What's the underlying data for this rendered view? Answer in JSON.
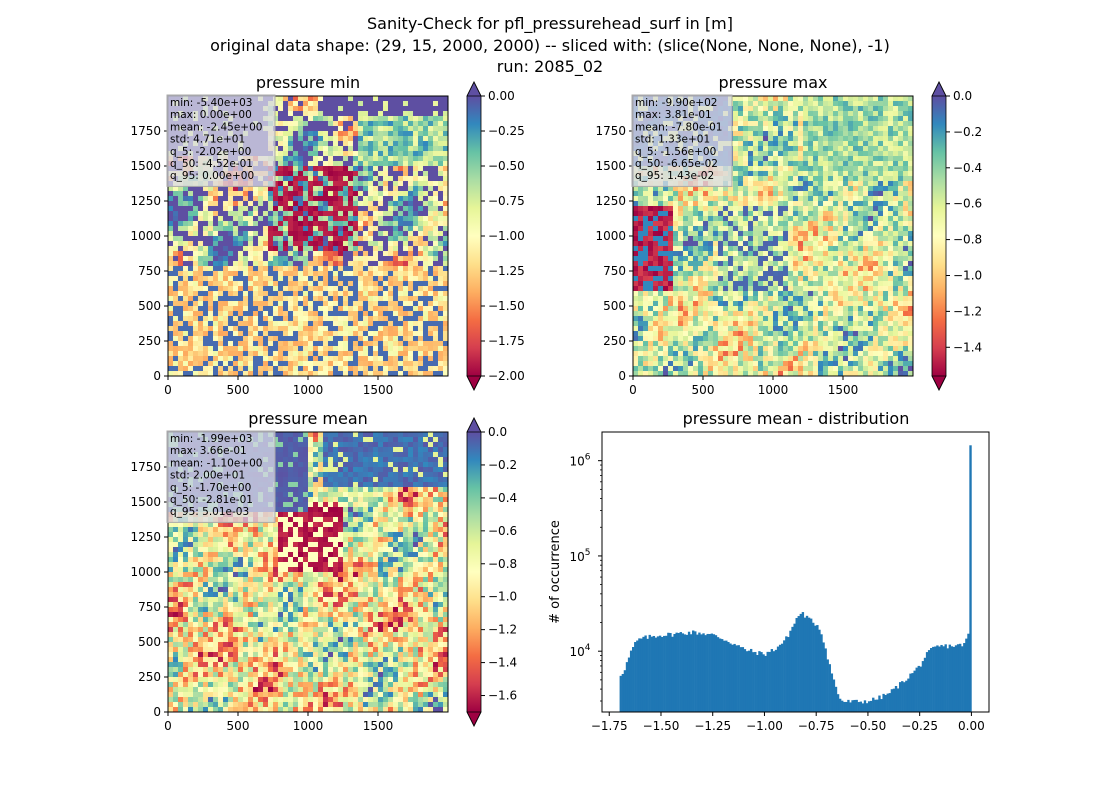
{
  "figure": {
    "title_lines": [
      "Sanity-Check for pfl_pressurehead_surf in [m]",
      "original data shape: (29, 15, 2000, 2000) -- sliced with: (slice(None, None, None), -1)",
      "run: 2085_02"
    ]
  },
  "colors": {
    "spectral": [
      "#9e0142",
      "#d53e4f",
      "#f46d43",
      "#fdae61",
      "#fee08b",
      "#ffffbf",
      "#e6f598",
      "#abdda4",
      "#66c2a5",
      "#3288bd",
      "#5e4fa2"
    ],
    "hist_bar": "#1f77b4",
    "stats_box_bg": "#d9d9e6"
  },
  "chart_data": [
    {
      "type": "heatmap",
      "title": "pressure min",
      "xlim": [
        0,
        2000
      ],
      "ylim": [
        0,
        2000
      ],
      "xticks": [
        "0",
        "500",
        "1000",
        "1500"
      ],
      "yticks": [
        "0",
        "250",
        "500",
        "750",
        "1000",
        "1250",
        "1500",
        "1750"
      ],
      "colorbar": {
        "range": [
          -2.0,
          0.0
        ],
        "ticks": [
          "0.00",
          "−0.25",
          "−0.50",
          "−0.75",
          "−1.00",
          "−1.25",
          "−1.50",
          "−1.75",
          "−2.00"
        ],
        "extend": "both"
      },
      "stats": [
        "min: -5.40e+03",
        "max: 0.00e+00",
        "mean: -2.45e+00",
        "std: 4.71e+01",
        "q_5: -2.02e+00",
        "q_50: -4.52e-01",
        "q_95: 0.00e+00"
      ]
    },
    {
      "type": "heatmap",
      "title": "pressure max",
      "xlim": [
        0,
        2000
      ],
      "ylim": [
        0,
        2000
      ],
      "xticks": [
        "0",
        "500",
        "1000",
        "1500"
      ],
      "yticks": [
        "0",
        "250",
        "500",
        "750",
        "1000",
        "1250",
        "1500",
        "1750"
      ],
      "colorbar": {
        "range": [
          -1.56,
          0.0
        ],
        "ticks": [
          "0.0",
          "−0.2",
          "−0.4",
          "−0.6",
          "−0.8",
          "−1.0",
          "−1.2",
          "−1.4"
        ],
        "extend": "both"
      },
      "stats": [
        "min: -9.90e+02",
        "max: 3.81e-01",
        "mean: -7.80e-01",
        "std: 1.33e+01",
        "q_5: -1.56e+00",
        "q_50: -6.65e-02",
        "q_95: 1.43e-02"
      ]
    },
    {
      "type": "heatmap",
      "title": "pressure mean",
      "xlim": [
        0,
        2000
      ],
      "ylim": [
        0,
        2000
      ],
      "xticks": [
        "0",
        "500",
        "1000",
        "1500"
      ],
      "yticks": [
        "0",
        "250",
        "500",
        "750",
        "1000",
        "1250",
        "1500",
        "1750"
      ],
      "colorbar": {
        "range": [
          -1.7,
          0.0
        ],
        "ticks": [
          "0.0",
          "−0.2",
          "−0.4",
          "−0.6",
          "−0.8",
          "−1.0",
          "−1.2",
          "−1.4",
          "−1.6"
        ],
        "extend": "both"
      },
      "stats": [
        "min: -1.99e+03",
        "max: 3.66e-01",
        "mean: -1.10e+00",
        "std: 2.00e+01",
        "q_5: -1.70e+00",
        "q_50: -2.81e-01",
        "q_95: 5.01e-03"
      ]
    },
    {
      "type": "bar",
      "title": "pressure mean - distribution",
      "ylabel": "# of occurrence",
      "xlabel": "",
      "yscale": "log",
      "xlim": [
        -1.785,
        0.085
      ],
      "ylim": [
        2300,
        2000000
      ],
      "xticks": [
        "−1.75",
        "−1.50",
        "−1.25",
        "−1.00",
        "−0.75",
        "−0.50",
        "−0.25",
        "0.00"
      ],
      "yticks": [
        "10^4",
        "10^5",
        "10^6"
      ],
      "bins": {
        "start": -1.7,
        "end": 0.0,
        "count": 170
      },
      "anchors": [
        [
          -1.7,
          5500
        ],
        [
          -1.68,
          6200
        ],
        [
          -1.66,
          8000
        ],
        [
          -1.64,
          10500
        ],
        [
          -1.62,
          12500
        ],
        [
          -1.6,
          13500
        ],
        [
          -1.55,
          14200
        ],
        [
          -1.5,
          14800
        ],
        [
          -1.45,
          15000
        ],
        [
          -1.4,
          15500
        ],
        [
          -1.35,
          15800
        ],
        [
          -1.3,
          15500
        ],
        [
          -1.25,
          14800
        ],
        [
          -1.2,
          13500
        ],
        [
          -1.15,
          12000
        ],
        [
          -1.1,
          10500
        ],
        [
          -1.05,
          9800
        ],
        [
          -1.0,
          9300
        ],
        [
          -0.95,
          10500
        ],
        [
          -0.9,
          13000
        ],
        [
          -0.87,
          17000
        ],
        [
          -0.84,
          23000
        ],
        [
          -0.82,
          25500
        ],
        [
          -0.8,
          23000
        ],
        [
          -0.77,
          20500
        ],
        [
          -0.74,
          18500
        ],
        [
          -0.72,
          14500
        ],
        [
          -0.7,
          9500
        ],
        [
          -0.68,
          6500
        ],
        [
          -0.66,
          4500
        ],
        [
          -0.64,
          3300
        ],
        [
          -0.62,
          2950
        ],
        [
          -0.55,
          2950
        ],
        [
          -0.5,
          3000
        ],
        [
          -0.45,
          3200
        ],
        [
          -0.4,
          3600
        ],
        [
          -0.35,
          4400
        ],
        [
          -0.3,
          5500
        ],
        [
          -0.25,
          7000
        ],
        [
          -0.22,
          9000
        ],
        [
          -0.19,
          10500
        ],
        [
          -0.16,
          11200
        ],
        [
          -0.1,
          11400
        ],
        [
          -0.05,
          11500
        ],
        [
          -0.03,
          12500
        ],
        [
          -0.02,
          13500
        ],
        [
          -0.01,
          17000
        ],
        [
          0.0,
          24000
        ]
      ],
      "spike": {
        "x": 0.0,
        "value": 1450000
      }
    }
  ]
}
